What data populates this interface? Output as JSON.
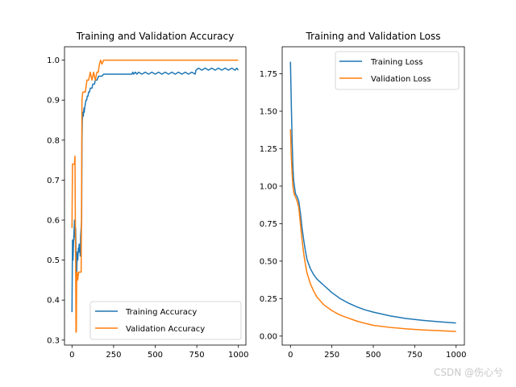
{
  "chart_data": [
    {
      "type": "line",
      "title": "Training and Validation Accuracy",
      "xlabel": "",
      "ylabel": "",
      "xlim": [
        -45,
        1045
      ],
      "ylim": [
        0.2875,
        1.0335
      ],
      "xticks": [
        0,
        250,
        500,
        750,
        1000
      ],
      "yticks": [
        0.3,
        0.4,
        0.5,
        0.6,
        0.7,
        0.8,
        0.9,
        1.0
      ],
      "ytick_labels": [
        "0.3",
        "0.4",
        "0.5",
        "0.6",
        "0.7",
        "0.8",
        "0.9",
        "1.0"
      ],
      "grid": false,
      "legend_position": "lower-right",
      "series": [
        {
          "name": "Training Accuracy",
          "color": "#1f77b4",
          "x": [
            0,
            3,
            6,
            10,
            12,
            15,
            18,
            20,
            22,
            25,
            28,
            30,
            32,
            35,
            38,
            40,
            43,
            45,
            48,
            50,
            52,
            55,
            58,
            60,
            62,
            64,
            66,
            68,
            70,
            72,
            74,
            76,
            80,
            84,
            88,
            92,
            96,
            100,
            105,
            110,
            115,
            120,
            125,
            130,
            135,
            140,
            150,
            160,
            170,
            180,
            190,
            200,
            220,
            240,
            260,
            280,
            300,
            320,
            340,
            360,
            365,
            370,
            380,
            390,
            400,
            420,
            440,
            460,
            480,
            500,
            520,
            540,
            560,
            580,
            600,
            620,
            640,
            660,
            680,
            700,
            720,
            740,
            745,
            760,
            780,
            800,
            820,
            840,
            860,
            880,
            900,
            920,
            940,
            960,
            980,
            990,
            999
          ],
          "y": [
            0.37,
            0.55,
            0.5,
            0.55,
            0.57,
            0.6,
            0.56,
            0.55,
            0.58,
            0.5,
            0.45,
            0.5,
            0.52,
            0.5,
            0.53,
            0.52,
            0.54,
            0.52,
            0.53,
            0.51,
            0.56,
            0.58,
            0.6,
            0.8,
            0.85,
            0.86,
            0.87,
            0.86,
            0.87,
            0.88,
            0.87,
            0.88,
            0.89,
            0.9,
            0.9,
            0.91,
            0.91,
            0.92,
            0.92,
            0.93,
            0.93,
            0.93,
            0.94,
            0.94,
            0.94,
            0.95,
            0.95,
            0.96,
            0.96,
            0.96,
            0.965,
            0.965,
            0.965,
            0.965,
            0.965,
            0.965,
            0.965,
            0.965,
            0.965,
            0.965,
            0.97,
            0.965,
            0.97,
            0.965,
            0.97,
            0.965,
            0.97,
            0.965,
            0.97,
            0.965,
            0.97,
            0.965,
            0.97,
            0.965,
            0.97,
            0.965,
            0.97,
            0.965,
            0.97,
            0.965,
            0.97,
            0.965,
            0.975,
            0.98,
            0.975,
            0.98,
            0.975,
            0.98,
            0.975,
            0.98,
            0.975,
            0.98,
            0.975,
            0.98,
            0.975,
            0.98,
            0.975
          ]
        },
        {
          "name": "Validation Accuracy",
          "color": "#ff7f0e",
          "x": [
            0,
            3,
            6,
            9,
            12,
            15,
            18,
            20,
            22,
            24,
            26,
            28,
            30,
            34,
            40,
            46,
            52,
            55,
            57,
            60,
            65,
            70,
            75,
            80,
            90,
            100,
            110,
            120,
            130,
            140,
            150,
            158,
            165,
            172,
            180,
            190,
            200,
            220,
            250,
            300,
            400,
            500,
            600,
            700,
            800,
            900,
            999
          ],
          "y": [
            0.58,
            0.74,
            0.74,
            0.74,
            0.74,
            0.74,
            0.76,
            0.6,
            0.5,
            0.32,
            0.32,
            0.45,
            0.47,
            0.45,
            0.47,
            0.47,
            0.47,
            0.47,
            0.6,
            0.9,
            0.92,
            0.92,
            0.92,
            0.92,
            0.95,
            0.95,
            0.97,
            0.95,
            0.97,
            0.95,
            0.97,
            0.97,
            0.99,
            1.0,
            0.99,
            1.0,
            1.0,
            1.0,
            1.0,
            1.0,
            1.0,
            1.0,
            1.0,
            1.0,
            1.0,
            1.0,
            1.0
          ]
        }
      ]
    },
    {
      "type": "line",
      "title": "Training and Validation Loss",
      "xlabel": "",
      "ylabel": "",
      "xlim": [
        -50,
        1050
      ],
      "ylim": [
        -0.06,
        1.93
      ],
      "xticks": [
        0,
        250,
        500,
        750,
        1000
      ],
      "yticks": [
        0.0,
        0.25,
        0.5,
        0.75,
        1.0,
        1.25,
        1.5,
        1.75
      ],
      "ytick_labels": [
        "0.00",
        "0.25",
        "0.50",
        "0.75",
        "1.00",
        "1.25",
        "1.50",
        "1.75"
      ],
      "grid": false,
      "legend_position": "top-right",
      "series": [
        {
          "name": "Training Loss",
          "color": "#1f77b4",
          "x": [
            0,
            5,
            10,
            15,
            20,
            25,
            30,
            40,
            50,
            60,
            70,
            80,
            90,
            100,
            120,
            140,
            160,
            180,
            200,
            250,
            300,
            350,
            400,
            450,
            500,
            600,
            700,
            800,
            900,
            999
          ],
          "y": [
            1.83,
            1.55,
            1.3,
            1.12,
            1.03,
            0.99,
            0.95,
            0.93,
            0.9,
            0.82,
            0.72,
            0.64,
            0.57,
            0.51,
            0.45,
            0.41,
            0.38,
            0.36,
            0.34,
            0.29,
            0.25,
            0.22,
            0.195,
            0.175,
            0.16,
            0.135,
            0.117,
            0.105,
            0.095,
            0.087
          ]
        },
        {
          "name": "Validation Loss",
          "color": "#ff7f0e",
          "x": [
            0,
            5,
            10,
            15,
            20,
            25,
            30,
            40,
            50,
            60,
            70,
            80,
            90,
            100,
            120,
            140,
            160,
            180,
            200,
            250,
            300,
            350,
            400,
            450,
            500,
            600,
            700,
            800,
            900,
            999
          ],
          "y": [
            1.38,
            1.2,
            1.08,
            1.0,
            0.96,
            0.94,
            0.93,
            0.9,
            0.86,
            0.75,
            0.64,
            0.55,
            0.48,
            0.42,
            0.35,
            0.3,
            0.26,
            0.235,
            0.21,
            0.17,
            0.14,
            0.12,
            0.1,
            0.085,
            0.072,
            0.058,
            0.048,
            0.041,
            0.036,
            0.031
          ]
        }
      ]
    }
  ],
  "watermark": "CSDN @伤心兮"
}
